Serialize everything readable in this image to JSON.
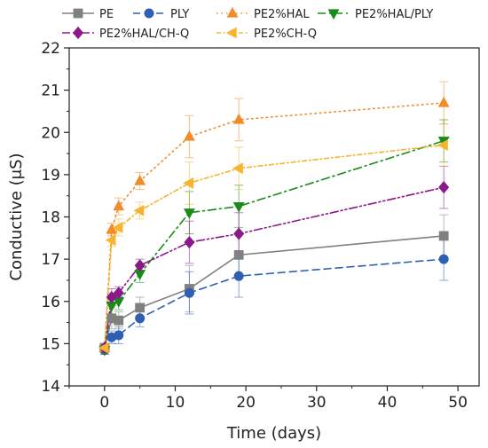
{
  "chart_data": {
    "type": "line",
    "xlabel": "Time (days)",
    "ylabel": "Conductive (μS)",
    "xlim": [
      -5,
      53
    ],
    "ylim": [
      14,
      22
    ],
    "xticks": [
      0,
      10,
      20,
      30,
      40,
      50
    ],
    "yticks": [
      14,
      15,
      16,
      17,
      18,
      19,
      20,
      21,
      22
    ],
    "legend_position": "top",
    "series": [
      {
        "name": "PE",
        "color": "#808080",
        "marker": "square",
        "dash": "solid",
        "x": [
          0,
          1,
          2,
          5,
          12,
          19,
          48
        ],
        "y": [
          14.9,
          15.6,
          15.55,
          15.85,
          16.3,
          17.1,
          17.55
        ],
        "err": [
          0.1,
          0.25,
          0.2,
          0.25,
          0.55,
          0.5,
          0.5
        ]
      },
      {
        "name": "PLY",
        "color": "#2f5fb3",
        "marker": "circle",
        "dash": "dashed",
        "x": [
          0,
          1,
          2,
          5,
          12,
          19,
          48
        ],
        "y": [
          14.85,
          15.15,
          15.2,
          15.6,
          16.2,
          16.6,
          17.0
        ],
        "err": [
          0.1,
          0.15,
          0.2,
          0.2,
          0.5,
          0.5,
          0.5
        ]
      },
      {
        "name": "PE2%HAL",
        "color": "#f08c2a",
        "marker": "triangle-up",
        "dash": "dotted",
        "x": [
          0,
          1,
          2,
          5,
          12,
          19,
          48
        ],
        "y": [
          14.9,
          17.7,
          18.25,
          18.85,
          19.9,
          20.3,
          20.7
        ],
        "err": [
          0.1,
          0.15,
          0.2,
          0.2,
          0.5,
          0.5,
          0.5
        ]
      },
      {
        "name": "PE2%HAL/PLY",
        "color": "#1a8a1a",
        "marker": "triangle-down",
        "dash": "dashdot",
        "x": [
          0,
          1,
          2,
          5,
          12,
          19,
          48
        ],
        "y": [
          14.85,
          15.9,
          16.0,
          16.65,
          18.1,
          18.25,
          19.8
        ],
        "err": [
          0.1,
          0.2,
          0.2,
          0.2,
          0.5,
          0.5,
          0.5
        ]
      },
      {
        "name": "PE2%HAL/CH-Q",
        "color": "#8a1a8a",
        "marker": "diamond",
        "dash": "dashdotdot",
        "x": [
          0,
          1,
          2,
          5,
          12,
          19,
          48
        ],
        "y": [
          14.9,
          16.1,
          16.2,
          16.85,
          17.4,
          17.6,
          18.7
        ],
        "err": [
          0.1,
          0.2,
          0.15,
          0.15,
          0.5,
          0.5,
          0.5
        ]
      },
      {
        "name": "PE2%CH-Q",
        "color": "#f5b52e",
        "marker": "triangle-left",
        "dash": "shortdash",
        "x": [
          0,
          1,
          2,
          5,
          12,
          19,
          48
        ],
        "y": [
          14.9,
          17.45,
          17.75,
          18.15,
          18.8,
          19.15,
          19.7
        ],
        "err": [
          0.1,
          0.15,
          0.2,
          0.2,
          0.5,
          0.5,
          0.5
        ]
      }
    ]
  }
}
